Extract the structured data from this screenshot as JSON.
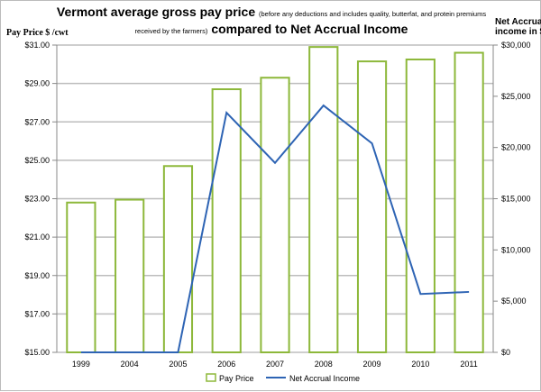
{
  "chart_data": {
    "type": "bar+line",
    "title_main": "Vermont average gross pay price",
    "title_note": "(before any deductions and includes quality, butterfat, and protein premiums received by the farmers)",
    "title_end": "compared to Net Accrual Income",
    "ylabel_left": "Pay Price $ /cwt",
    "ylabel_right_1": "Net Accrual",
    "ylabel_right_2": "income in $",
    "categories": [
      "1999",
      "2004",
      "2005",
      "2006",
      "2007",
      "2008",
      "2009",
      "2010",
      "2011"
    ],
    "ylim_left": [
      15,
      31
    ],
    "yticks_left": [
      "$15.00",
      "$17.00",
      "$19.00",
      "$21.00",
      "$23.00",
      "$25.00",
      "$27.00",
      "$29.00",
      "$31.00"
    ],
    "ylim_right": [
      0,
      30000
    ],
    "yticks_right": [
      "$0",
      "$5,000",
      "$10,000",
      "$15,000",
      "$20,000",
      "$25,000",
      "$30,000"
    ],
    "grid": true,
    "legend_placement": "bottom",
    "series": [
      {
        "name": "Pay Price",
        "type": "bar",
        "axis": "left",
        "color": "#8DB83A",
        "values": [
          22.8,
          22.95,
          24.7,
          28.7,
          29.3,
          30.9,
          30.15,
          30.25,
          30.6
        ]
      },
      {
        "name": "Net Accrual Income",
        "type": "line",
        "axis": "right",
        "color": "#2E64B4",
        "values": [
          0,
          0,
          0,
          23400,
          18500,
          24100,
          20400,
          5700,
          5900
        ]
      }
    ]
  }
}
